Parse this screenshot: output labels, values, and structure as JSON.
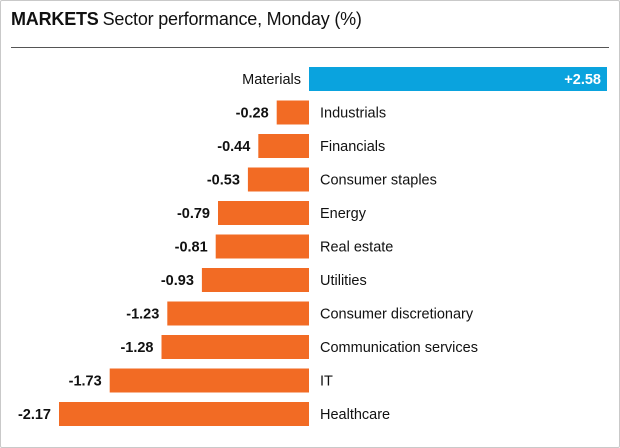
{
  "header": {
    "kicker": "MARKETS",
    "title": "Sector performance, Monday (%)"
  },
  "colors": {
    "positive": "#0aa3de",
    "negative": "#f26b24"
  },
  "chart_data": {
    "type": "bar",
    "orientation": "horizontal",
    "title": "Sector performance, Monday (%)",
    "categories": [
      "Materials",
      "Industrials",
      "Financials",
      "Consumer staples",
      "Energy",
      "Real estate",
      "Utilities",
      "Consumer discretionary",
      "Communication services",
      "IT",
      "Healthcare"
    ],
    "values": [
      2.58,
      -0.28,
      -0.44,
      -0.53,
      -0.79,
      -0.81,
      -0.93,
      -1.23,
      -1.28,
      -1.73,
      -2.17
    ],
    "value_labels": [
      "+2.58",
      "-0.28",
      "-0.44",
      "-0.53",
      "-0.79",
      "-0.81",
      "-0.93",
      "-1.23",
      "-1.28",
      "-1.73",
      "-2.17"
    ],
    "xlim": [
      -2.17,
      2.58
    ],
    "grid": false,
    "legend": "none"
  }
}
